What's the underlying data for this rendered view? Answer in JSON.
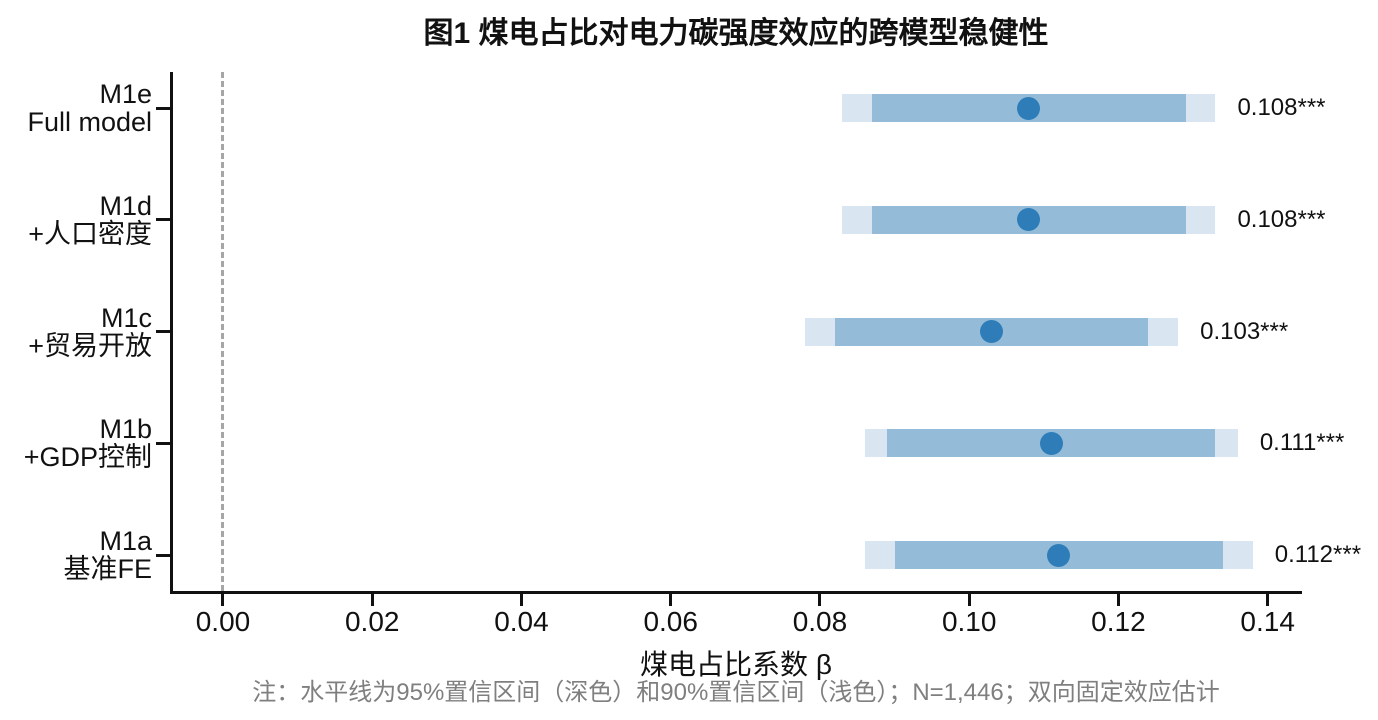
{
  "chart_data": {
    "type": "scatter",
    "subtype": "coefficient-forest-plot",
    "title": "图1 煤电占比对电力碳强度效应的跨模型稳健性",
    "xlabel": "煤电占比系数 β",
    "note": "注：水平线为95%置信区间（深色）和90%置信区间（浅色）；N=1,446；双向固定效应估计",
    "xlim": [
      -0.0071,
      0.1446
    ],
    "xticks": [
      {
        "value": 0.0,
        "label": "0.00"
      },
      {
        "value": 0.02,
        "label": "0.02"
      },
      {
        "value": 0.04,
        "label": "0.04"
      },
      {
        "value": 0.06,
        "label": "0.06"
      },
      {
        "value": 0.08,
        "label": "0.08"
      },
      {
        "value": 0.1,
        "label": "0.10"
      },
      {
        "value": 0.12,
        "label": "0.12"
      },
      {
        "value": 0.14,
        "label": "0.14"
      }
    ],
    "zero_line": 0.0,
    "grid": false,
    "legend": "none",
    "rows": [
      {
        "model": "M1e",
        "desc": "Full model",
        "estimate": 0.108,
        "estimate_label": "0.108***",
        "ci_dark": [
          0.087,
          0.129
        ],
        "ci_light": [
          0.083,
          0.133
        ]
      },
      {
        "model": "M1d",
        "desc": "+人口密度",
        "estimate": 0.108,
        "estimate_label": "0.108***",
        "ci_dark": [
          0.087,
          0.129
        ],
        "ci_light": [
          0.083,
          0.133
        ]
      },
      {
        "model": "M1c",
        "desc": "+贸易开放",
        "estimate": 0.103,
        "estimate_label": "0.103***",
        "ci_dark": [
          0.082,
          0.124
        ],
        "ci_light": [
          0.078,
          0.128
        ]
      },
      {
        "model": "M1b",
        "desc": "+GDP控制",
        "estimate": 0.111,
        "estimate_label": "0.111***",
        "ci_dark": [
          0.089,
          0.133
        ],
        "ci_light": [
          0.086,
          0.136
        ]
      },
      {
        "model": "M1a",
        "desc": "基准FE",
        "estimate": 0.112,
        "estimate_label": "0.112***",
        "ci_dark": [
          0.09,
          0.134
        ],
        "ci_light": [
          0.086,
          0.138
        ]
      }
    ],
    "colors": {
      "dot": "#2e7db8",
      "ci_dark": "#94bcd9",
      "ci_light": "#d9e6f2",
      "zero_line": "#a6a6a6",
      "axis": "#111111",
      "note_text": "#7f7f7f"
    }
  }
}
